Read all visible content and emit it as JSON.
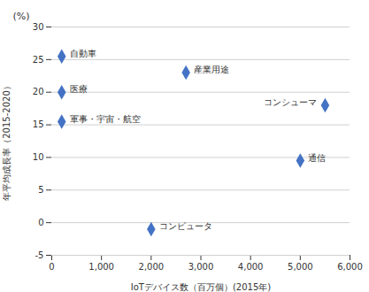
{
  "chart_data": {
    "type": "scatter",
    "x": [
      200,
      200,
      200,
      2700,
      2000,
      5000,
      5500
    ],
    "values": [
      25.5,
      20.0,
      15.5,
      23.0,
      -1.0,
      9.5,
      18.0
    ],
    "labels": [
      "自動車",
      "医療",
      "軍事・宇宙・航空",
      "産業用途",
      "コンピュータ",
      "通信",
      "コンシューマ"
    ],
    "color": "#4472c4",
    "marker": "diamond",
    "xlabel": "IoTデバイス数（百万個）(2015年)",
    "ylabel": "年平均成長率（2015-2020）",
    "annotations": [
      "(%)"
    ],
    "xlim": [
      0,
      6000
    ],
    "ylim": [
      -5,
      30
    ],
    "xticks": [
      0,
      {
        "value": 1000,
        "label": "1,000"
      },
      {
        "value": 2000,
        "label": "2,000"
      },
      {
        "value": 3000,
        "label": "3,000"
      },
      {
        "value": 4000,
        "label": "4,000"
      },
      {
        "value": 5000,
        "label": "5,000"
      },
      {
        "value": 6000,
        "label": "6,000"
      }
    ],
    "yticks": [
      -5,
      0,
      5,
      10,
      15,
      20,
      25,
      30
    ],
    "grid": "y"
  }
}
